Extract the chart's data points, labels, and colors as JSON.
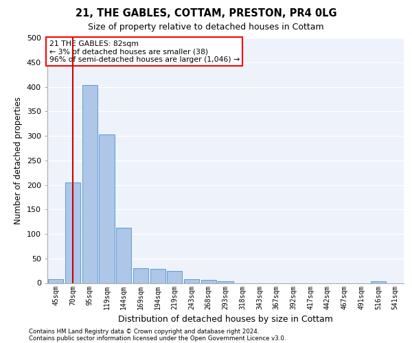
{
  "title_line1": "21, THE GABLES, COTTAM, PRESTON, PR4 0LG",
  "title_line2": "Size of property relative to detached houses in Cottam",
  "xlabel": "Distribution of detached houses by size in Cottam",
  "ylabel": "Number of detached properties",
  "categories": [
    "45sqm",
    "70sqm",
    "95sqm",
    "119sqm",
    "144sqm",
    "169sqm",
    "194sqm",
    "219sqm",
    "243sqm",
    "268sqm",
    "293sqm",
    "318sqm",
    "343sqm",
    "367sqm",
    "392sqm",
    "417sqm",
    "442sqm",
    "467sqm",
    "491sqm",
    "516sqm",
    "541sqm"
  ],
  "values": [
    8,
    205,
    403,
    303,
    112,
    30,
    29,
    25,
    7,
    6,
    3,
    0,
    0,
    0,
    0,
    0,
    0,
    0,
    0,
    4,
    0
  ],
  "bar_color": "#aec6e8",
  "bar_edge_color": "#5b9bd5",
  "vline_color": "#cc0000",
  "marker_label": "21 THE GABLES: 82sqm",
  "marker_smaller": "← 3% of detached houses are smaller (38)",
  "marker_larger": "96% of semi-detached houses are larger (1,046) →",
  "ylim": [
    0,
    500
  ],
  "yticks": [
    0,
    50,
    100,
    150,
    200,
    250,
    300,
    350,
    400,
    450,
    500
  ],
  "footnote1": "Contains HM Land Registry data © Crown copyright and database right 2024.",
  "footnote2": "Contains public sector information licensed under the Open Government Licence v3.0.",
  "background_color": "#eef2fa"
}
